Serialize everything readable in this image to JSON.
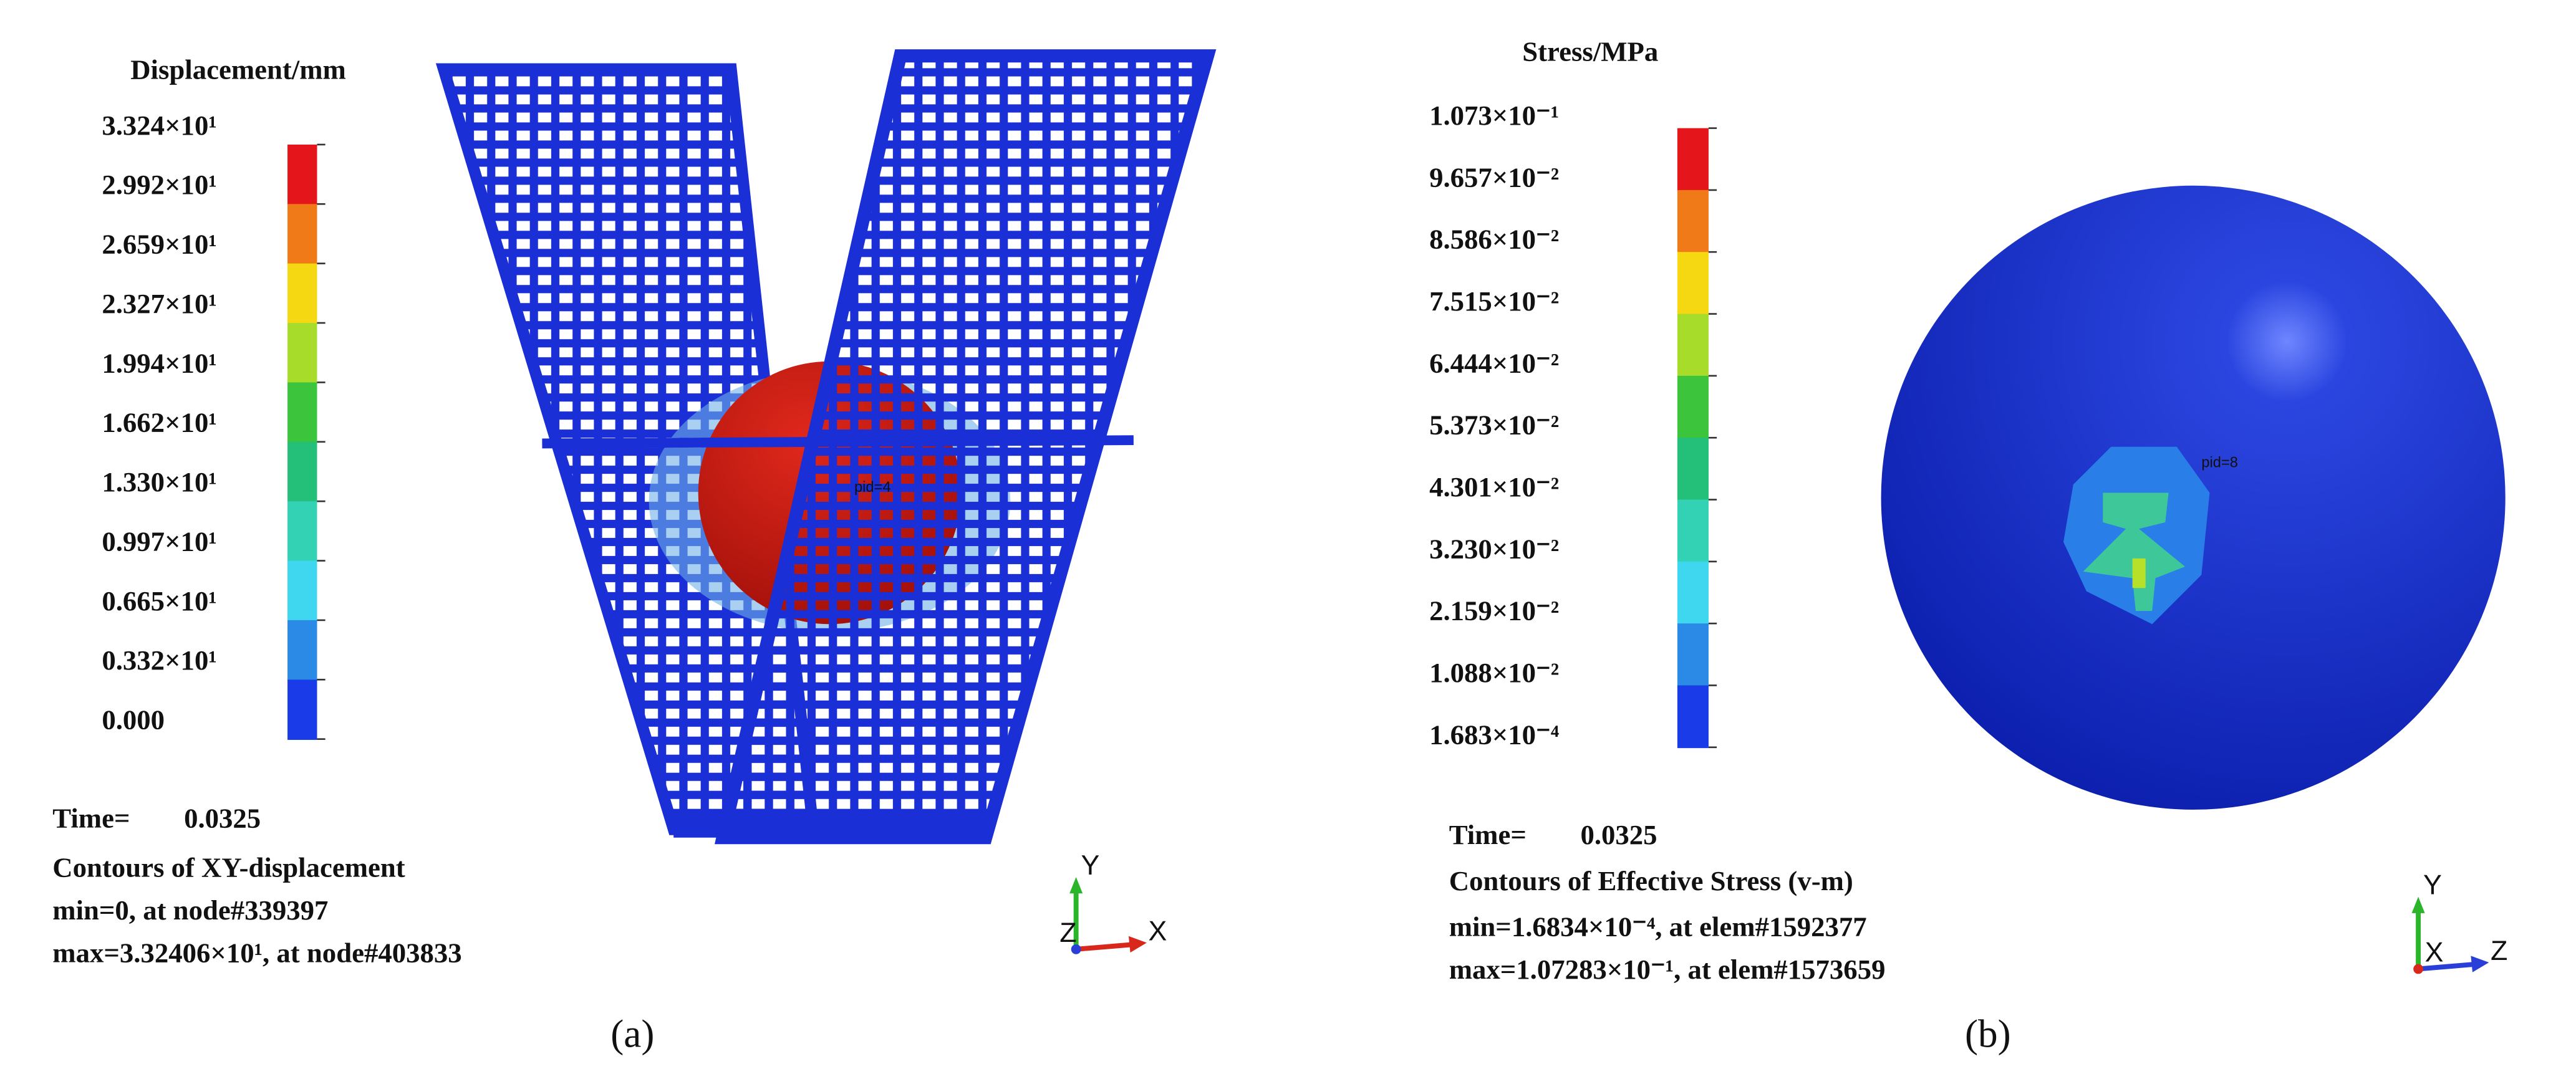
{
  "panels": [
    {
      "caption": "(a)",
      "legend": {
        "title": "Displacement/mm",
        "labels": [
          "3.324×10¹",
          "2.992×10¹",
          "2.659×10¹",
          "2.327×10¹",
          "1.994×10¹",
          "1.662×10¹",
          "1.330×10¹",
          "0.997×10¹",
          "0.665×10¹",
          "0.332×10¹",
          "0.000"
        ],
        "colors": [
          "#e5161b",
          "#f07a18",
          "#f6d812",
          "#a8dc2a",
          "#3cc43c",
          "#24bf78",
          "#34d2b4",
          "#3fd6f0",
          "#2a8ae6",
          "#1a3ce8"
        ]
      },
      "time_label": "Time=",
      "time": "0.0325",
      "lines": [
        "Contours of XY-displacement",
        "min=0, at node#339397",
        "max=3.32406×10¹, at node#403833"
      ],
      "part_label": "pid=4",
      "axes": [
        "Y",
        "Z",
        "X"
      ]
    },
    {
      "caption": "(b)",
      "legend": {
        "title": "Stress/MPa",
        "labels": [
          "1.073×10⁻¹",
          "9.657×10⁻²",
          "8.586×10⁻²",
          "7.515×10⁻²",
          "6.444×10⁻²",
          "5.373×10⁻²",
          "4.301×10⁻²",
          "3.230×10⁻²",
          "2.159×10⁻²",
          "1.088×10⁻²",
          "1.683×10⁻⁴"
        ],
        "colors": [
          "#e5161b",
          "#f07a18",
          "#f6d812",
          "#a8dc2a",
          "#3cc43c",
          "#24bf78",
          "#34d2b4",
          "#3fd6f0",
          "#2a8ae6",
          "#1a3ce8"
        ]
      },
      "time_label": "Time=",
      "time": "0.0325",
      "lines": [
        "Contours of Effective Stress (v-m)",
        "min=1.6834×10⁻⁴, at elem#1592377",
        "max=1.07283×10⁻¹, at elem#1573659"
      ],
      "part_label": "pid=8",
      "axes": [
        "Y",
        "X",
        "Z"
      ]
    }
  ]
}
